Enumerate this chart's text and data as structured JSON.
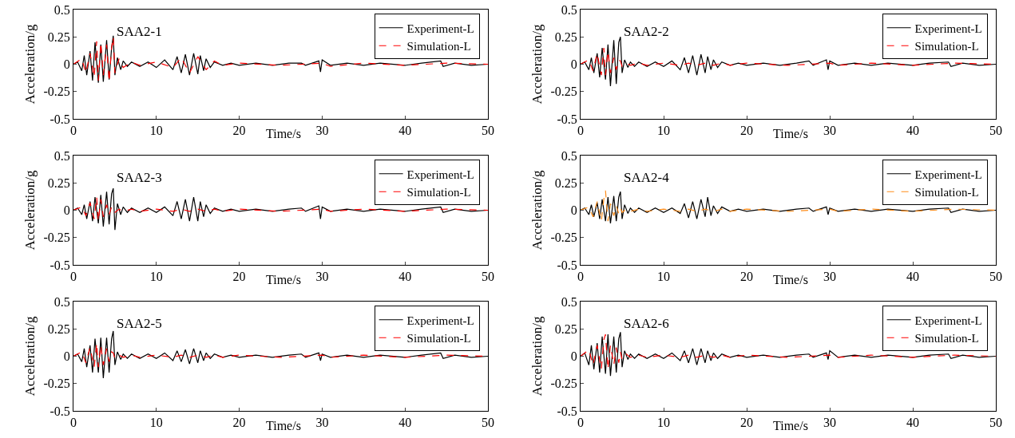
{
  "chart_data": [
    {
      "type": "line",
      "title": "SAA2-1",
      "xlabel": "Time/s",
      "ylabel": "Acceleration/g",
      "xlim": [
        0,
        50
      ],
      "xticks": [
        0,
        10,
        20,
        30,
        40,
        50
      ],
      "ylim": [
        -0.5,
        0.5
      ],
      "yticks": [
        -0.5,
        -0.25,
        0,
        0.25,
        0.5
      ],
      "grid": false,
      "legend": "top right",
      "marker": "none",
      "series": [
        {
          "name": "Experiment-L",
          "color": "#000000",
          "line_style": "solid",
          "x": [
            0,
            0.5,
            1,
            1.3,
            1.6,
            2,
            2.3,
            2.6,
            3,
            3.3,
            3.6,
            4,
            4.3,
            4.6,
            4.8,
            5,
            5.3,
            5.7,
            6,
            6.5,
            7,
            8,
            9,
            10,
            11,
            12,
            12.5,
            13,
            13.5,
            14,
            14.5,
            15,
            15.3,
            15.7,
            16,
            16.5,
            17,
            18,
            19,
            20,
            22,
            24,
            26,
            27.5,
            28,
            29.6,
            29.8,
            30,
            31,
            33,
            35,
            37,
            40,
            42,
            44.3,
            44.6,
            46,
            48,
            50
          ],
          "values": [
            0,
            0.02,
            -0.06,
            0.08,
            -0.1,
            0.12,
            -0.15,
            0.2,
            -0.17,
            0.18,
            -0.16,
            0.22,
            -0.14,
            0.15,
            0.26,
            -0.1,
            0.06,
            -0.05,
            0.03,
            -0.02,
            0.02,
            -0.02,
            0.02,
            -0.03,
            0.04,
            -0.05,
            0.07,
            -0.08,
            0.09,
            -0.1,
            0.1,
            -0.09,
            0.08,
            -0.06,
            0.05,
            -0.03,
            0.02,
            -0.01,
            0.01,
            -0.01,
            0.01,
            -0.01,
            0.01,
            0.01,
            -0.01,
            0.03,
            -0.07,
            0.04,
            -0.01,
            0.01,
            -0.01,
            0.01,
            -0.01,
            0.01,
            0.03,
            -0.02,
            0.01,
            -0.01,
            0
          ]
        },
        {
          "name": "Simulation-L",
          "color": "#ff0000",
          "line_style": "dashed",
          "x": [
            0,
            1,
            1.5,
            2,
            2.5,
            2.8,
            3,
            3.3,
            3.6,
            4,
            4.3,
            4.6,
            4.8,
            5,
            5.5,
            6,
            7,
            8,
            10,
            12,
            13,
            14,
            15,
            16,
            17,
            18,
            20,
            25,
            30,
            31,
            35,
            40,
            45,
            50
          ],
          "values": [
            0,
            0.05,
            -0.08,
            0.1,
            -0.12,
            0.21,
            -0.15,
            0.2,
            -0.1,
            0.18,
            -0.16,
            0.15,
            0.25,
            -0.08,
            0.05,
            -0.03,
            0.02,
            -0.01,
            0.02,
            -0.03,
            0.06,
            -0.08,
            0.07,
            -0.05,
            0.03,
            -0.01,
            0.01,
            -0.01,
            0.01,
            -0.02,
            0.01,
            -0.01,
            0.01,
            0
          ]
        }
      ]
    },
    {
      "type": "line",
      "title": "SAA2-2",
      "xlabel": "Time/s",
      "ylabel": "Acceleration/g",
      "xlim": [
        0,
        50
      ],
      "xticks": [
        0,
        10,
        20,
        30,
        40,
        50
      ],
      "ylim": [
        -0.5,
        0.5
      ],
      "yticks": [
        -0.5,
        -0.25,
        0,
        0.25,
        0.5
      ],
      "grid": false,
      "legend": "top right",
      "marker": "none",
      "series": [
        {
          "name": "Experiment-L",
          "color": "#000000",
          "line_style": "solid",
          "x": [
            0,
            0.5,
            1,
            1.3,
            1.6,
            2,
            2.3,
            2.6,
            3,
            3.3,
            3.6,
            4,
            4.3,
            4.6,
            4.8,
            5,
            5.3,
            5.7,
            6,
            6.5,
            7,
            8,
            9,
            10,
            11,
            12,
            12.5,
            13,
            13.5,
            14,
            14.5,
            15,
            15.3,
            15.7,
            16,
            16.5,
            17,
            18,
            19,
            20,
            22,
            24,
            26,
            27.5,
            28,
            29.6,
            29.8,
            30,
            31,
            33,
            35,
            37,
            40,
            42,
            44.3,
            44.6,
            46,
            48,
            50
          ],
          "values": [
            0,
            0.02,
            -0.05,
            0.06,
            -0.08,
            0.1,
            -0.12,
            0.15,
            -0.14,
            0.18,
            -0.2,
            0.22,
            -0.18,
            0.2,
            0.25,
            -0.08,
            0.04,
            -0.03,
            0.02,
            -0.02,
            0.02,
            -0.02,
            0.02,
            -0.02,
            0.03,
            -0.05,
            0.06,
            -0.08,
            0.08,
            -0.1,
            0.09,
            -0.08,
            0.07,
            -0.05,
            0.04,
            -0.03,
            0.02,
            -0.01,
            0.01,
            -0.01,
            0.01,
            -0.01,
            0.01,
            0.03,
            -0.01,
            0.04,
            -0.05,
            0.03,
            -0.01,
            0.01,
            -0.01,
            0.01,
            -0.01,
            0.01,
            0.02,
            -0.02,
            0.01,
            -0.01,
            0
          ]
        },
        {
          "name": "Simulation-L",
          "color": "#ff0000",
          "line_style": "dashed",
          "x": [
            0,
            1,
            1.5,
            2,
            2.5,
            2.8,
            3,
            3.3,
            3.6,
            4,
            4.3,
            4.6,
            4.8,
            5,
            5.5,
            6,
            7,
            8,
            10,
            12,
            13,
            14,
            15,
            16,
            17,
            18,
            20,
            25,
            30,
            31,
            35,
            40,
            45,
            50
          ],
          "values": [
            0,
            0.04,
            -0.06,
            0.1,
            -0.1,
            0.15,
            -0.1,
            0.12,
            -0.08,
            0.06,
            -0.05,
            0.04,
            0.03,
            -0.02,
            0.01,
            -0.01,
            0.01,
            -0.01,
            0.01,
            -0.01,
            0.01,
            -0.01,
            0.01,
            -0.01,
            0.01,
            -0.01,
            0.01,
            -0.01,
            0.01,
            -0.01,
            0.01,
            -0.01,
            0.01,
            0
          ]
        }
      ]
    },
    {
      "type": "line",
      "title": "SAA2-3",
      "xlabel": "Time/s",
      "ylabel": "Acceleration/g",
      "xlim": [
        0,
        50
      ],
      "xticks": [
        0,
        10,
        20,
        30,
        40,
        50
      ],
      "ylim": [
        -0.5,
        0.5
      ],
      "yticks": [
        -0.5,
        -0.25,
        0,
        0.25,
        0.5
      ],
      "grid": false,
      "legend": "top right",
      "marker": "none",
      "series": [
        {
          "name": "Experiment-L",
          "color": "#000000",
          "line_style": "solid",
          "x": [
            0,
            0.5,
            1,
            1.3,
            1.6,
            2,
            2.3,
            2.6,
            3,
            3.3,
            3.6,
            4,
            4.3,
            4.6,
            4.8,
            5,
            5.3,
            5.7,
            6,
            6.5,
            7,
            8,
            9,
            10,
            11,
            12,
            12.5,
            13,
            13.5,
            14,
            14.5,
            15,
            15.3,
            15.7,
            16,
            16.5,
            17,
            18,
            19,
            20,
            22,
            24,
            26,
            27.5,
            28,
            29.6,
            29.8,
            30,
            31,
            33,
            35,
            37,
            40,
            42,
            44.3,
            44.6,
            46,
            48,
            50
          ],
          "values": [
            0,
            0.02,
            -0.04,
            0.05,
            -0.08,
            0.08,
            -0.1,
            0.12,
            -0.12,
            0.14,
            -0.15,
            0.17,
            -0.13,
            0.15,
            0.2,
            -0.18,
            0.06,
            -0.04,
            0.03,
            -0.02,
            0.02,
            -0.02,
            0.02,
            -0.02,
            0.03,
            -0.05,
            0.08,
            -0.08,
            0.1,
            -0.1,
            0.12,
            -0.1,
            0.08,
            -0.06,
            0.05,
            -0.03,
            0.02,
            -0.01,
            0.01,
            -0.01,
            0.01,
            -0.01,
            0.01,
            0.02,
            -0.01,
            0.04,
            -0.08,
            0.03,
            -0.01,
            0.01,
            -0.01,
            0.01,
            -0.01,
            0.01,
            0.03,
            -0.02,
            0.01,
            -0.01,
            0
          ]
        },
        {
          "name": "Simulation-L",
          "color": "#ff0000",
          "line_style": "dashed",
          "x": [
            0,
            1,
            1.5,
            2,
            2.5,
            2.8,
            3,
            3.3,
            3.6,
            4,
            4.3,
            4.6,
            4.8,
            5,
            5.5,
            6,
            7,
            8,
            10,
            12,
            13,
            14,
            15,
            16,
            17,
            18,
            20,
            25,
            30,
            31,
            35,
            40,
            45,
            50
          ],
          "values": [
            0,
            0.03,
            -0.05,
            0.07,
            -0.08,
            0.12,
            -0.1,
            0.1,
            -0.06,
            0.05,
            -0.04,
            0.03,
            0.02,
            -0.02,
            0.01,
            -0.01,
            0.01,
            -0.01,
            0.01,
            -0.01,
            0.01,
            -0.01,
            0.01,
            -0.01,
            0.01,
            -0.01,
            0.01,
            -0.01,
            0.01,
            -0.01,
            0.01,
            -0.01,
            0.01,
            0
          ]
        }
      ]
    },
    {
      "type": "line",
      "title": "SAA2-4",
      "xlabel": "Time/s",
      "ylabel": "Acceleration/g",
      "xlim": [
        0,
        50
      ],
      "xticks": [
        0,
        10,
        20,
        30,
        40,
        50
      ],
      "ylim": [
        -0.5,
        0.5
      ],
      "yticks": [
        -0.5,
        -0.25,
        0,
        0.25,
        0.5
      ],
      "grid": false,
      "legend": "top right",
      "marker": "none",
      "series": [
        {
          "name": "Experiment-L",
          "color": "#000000",
          "line_style": "solid",
          "x": [
            0,
            0.5,
            1,
            1.3,
            1.6,
            2,
            2.3,
            2.6,
            3,
            3.3,
            3.6,
            4,
            4.3,
            4.6,
            4.8,
            5,
            5.3,
            5.7,
            6,
            6.5,
            7,
            8,
            9,
            10,
            11,
            12,
            12.5,
            13,
            13.5,
            14,
            14.5,
            15,
            15.3,
            15.7,
            16,
            16.5,
            17,
            18,
            19,
            20,
            22,
            24,
            26,
            27.5,
            28,
            29.6,
            29.8,
            30,
            31,
            33,
            35,
            37,
            40,
            42,
            44.3,
            44.6,
            46,
            48,
            50
          ],
          "values": [
            0,
            0.02,
            -0.04,
            0.05,
            -0.06,
            0.07,
            -0.08,
            0.1,
            -0.1,
            0.12,
            -0.12,
            0.13,
            -0.1,
            0.12,
            0.17,
            -0.08,
            0.05,
            -0.03,
            0.02,
            -0.02,
            0.02,
            -0.02,
            0.02,
            -0.02,
            0.02,
            -0.03,
            0.06,
            -0.07,
            0.08,
            -0.08,
            0.1,
            -0.06,
            0.12,
            -0.05,
            0.04,
            -0.03,
            0.03,
            -0.01,
            0.01,
            -0.01,
            0.01,
            -0.01,
            0.01,
            0.02,
            -0.01,
            0.03,
            -0.04,
            0.02,
            -0.01,
            0.01,
            -0.01,
            0.01,
            -0.01,
            0.01,
            0.02,
            -0.02,
            0.01,
            -0.01,
            0
          ]
        },
        {
          "name": "Simulation-L",
          "color": "#ff8c1a",
          "line_style": "dashed",
          "x": [
            0,
            1,
            1.5,
            2,
            2.5,
            2.8,
            3,
            3.3,
            3.6,
            4,
            4.3,
            4.6,
            4.8,
            5,
            5.5,
            6,
            7,
            8,
            10,
            12,
            13,
            14,
            15,
            16,
            17,
            18,
            20,
            25,
            30,
            31,
            35,
            40,
            45,
            50
          ],
          "values": [
            0,
            0.03,
            -0.06,
            0.08,
            -0.1,
            0.1,
            0.18,
            -0.1,
            0.06,
            -0.05,
            0.04,
            -0.03,
            0.02,
            -0.02,
            0.01,
            -0.01,
            0.01,
            -0.01,
            0.01,
            -0.01,
            0.01,
            -0.01,
            0.01,
            -0.01,
            0.01,
            -0.01,
            0.01,
            -0.01,
            0.01,
            -0.01,
            0.01,
            -0.01,
            0.01,
            0
          ]
        }
      ]
    },
    {
      "type": "line",
      "title": "SAA2-5",
      "xlabel": "Time/s",
      "ylabel": "Acceleration/g",
      "xlim": [
        0,
        50
      ],
      "xticks": [
        0,
        10,
        20,
        30,
        40,
        50
      ],
      "ylim": [
        -0.5,
        0.5
      ],
      "yticks": [
        -0.5,
        -0.25,
        0,
        0.25,
        0.5
      ],
      "grid": false,
      "legend": "top right",
      "marker": "none",
      "series": [
        {
          "name": "Experiment-L",
          "color": "#000000",
          "line_style": "solid",
          "x": [
            0,
            0.5,
            1,
            1.3,
            1.6,
            2,
            2.3,
            2.6,
            3,
            3.3,
            3.6,
            4,
            4.3,
            4.6,
            4.8,
            5,
            5.3,
            5.7,
            6,
            6.5,
            7,
            8,
            9,
            10,
            11,
            12,
            12.5,
            13,
            13.5,
            14,
            14.5,
            15,
            15.3,
            15.7,
            16,
            16.5,
            17,
            18,
            19,
            20,
            22,
            24,
            26,
            27.5,
            28,
            29.6,
            29.8,
            30,
            31,
            33,
            35,
            37,
            40,
            42,
            44.3,
            44.6,
            46,
            48,
            50
          ],
          "values": [
            0,
            0.02,
            -0.05,
            0.07,
            -0.1,
            0.1,
            -0.15,
            0.16,
            -0.15,
            0.17,
            -0.2,
            0.17,
            -0.15,
            0.16,
            0.23,
            -0.08,
            0.04,
            -0.03,
            0.02,
            -0.02,
            0.02,
            -0.02,
            0.02,
            -0.02,
            0.03,
            -0.04,
            0.05,
            -0.05,
            0.06,
            -0.07,
            0.07,
            -0.06,
            0.05,
            -0.04,
            0.03,
            -0.02,
            0.02,
            -0.01,
            0.01,
            -0.01,
            0.01,
            -0.01,
            0.01,
            0.02,
            -0.01,
            0.03,
            -0.04,
            0.02,
            -0.01,
            0.01,
            -0.01,
            0.01,
            -0.01,
            0.01,
            0.03,
            -0.02,
            0.01,
            -0.01,
            0
          ]
        },
        {
          "name": "Simulation-L",
          "color": "#ff0000",
          "line_style": "dashed",
          "x": [
            0,
            1,
            1.5,
            2,
            2.5,
            2.8,
            3,
            3.3,
            3.6,
            4,
            4.3,
            4.6,
            4.8,
            5,
            5.5,
            6,
            7,
            8,
            10,
            12,
            13,
            14,
            15,
            16,
            17,
            18,
            20,
            25,
            30,
            31,
            35,
            40,
            45,
            50
          ],
          "values": [
            0,
            0.04,
            -0.06,
            0.08,
            -0.1,
            0.12,
            -0.1,
            0.1,
            -0.08,
            0.07,
            -0.05,
            0.04,
            0.03,
            -0.02,
            0.01,
            -0.01,
            0.01,
            -0.01,
            0.01,
            -0.01,
            0.01,
            -0.01,
            0.01,
            -0.01,
            0.01,
            -0.01,
            0.01,
            -0.01,
            0.01,
            -0.01,
            0.01,
            -0.01,
            0.01,
            0
          ]
        }
      ]
    },
    {
      "type": "line",
      "title": "SAA2-6",
      "xlabel": "Time/s",
      "ylabel": "Acceleration/g",
      "xlim": [
        0,
        50
      ],
      "xticks": [
        0,
        10,
        20,
        30,
        40,
        50
      ],
      "ylim": [
        -0.5,
        0.5
      ],
      "yticks": [
        -0.5,
        -0.25,
        0,
        0.25,
        0.5
      ],
      "grid": false,
      "legend": "top right",
      "marker": "none",
      "series": [
        {
          "name": "Experiment-L",
          "color": "#000000",
          "line_style": "solid",
          "x": [
            0,
            0.5,
            1,
            1.3,
            1.6,
            2,
            2.3,
            2.6,
            3,
            3.3,
            3.6,
            4,
            4.3,
            4.6,
            4.8,
            5,
            5.3,
            5.7,
            6,
            6.5,
            7,
            8,
            9,
            10,
            11,
            12,
            12.5,
            13,
            13.5,
            14,
            14.5,
            15,
            15.3,
            15.7,
            16,
            16.5,
            17,
            18,
            19,
            20,
            22,
            24,
            26,
            27.5,
            28,
            29.6,
            29.8,
            30,
            31,
            33,
            35,
            37,
            40,
            42,
            44.3,
            44.6,
            46,
            48,
            50
          ],
          "values": [
            0,
            0.03,
            -0.08,
            0.1,
            -0.12,
            0.12,
            -0.15,
            0.18,
            -0.16,
            0.2,
            -0.18,
            0.18,
            -0.15,
            0.16,
            0.22,
            -0.1,
            0.05,
            -0.03,
            0.02,
            -0.02,
            0.02,
            -0.02,
            0.02,
            -0.02,
            0.03,
            -0.04,
            0.05,
            -0.06,
            0.07,
            -0.08,
            0.07,
            -0.06,
            0.05,
            -0.04,
            0.03,
            -0.02,
            0.02,
            -0.01,
            0.01,
            -0.01,
            0.01,
            -0.01,
            0.01,
            0.02,
            -0.01,
            0.03,
            -0.03,
            0.05,
            -0.01,
            0.01,
            -0.01,
            0.01,
            -0.01,
            0.01,
            0.02,
            -0.02,
            0.01,
            -0.01,
            0
          ]
        },
        {
          "name": "Simulation-L",
          "color": "#ff0000",
          "line_style": "dashed",
          "x": [
            0,
            1,
            1.5,
            2,
            2.5,
            2.8,
            3,
            3.3,
            3.6,
            4,
            4.3,
            4.6,
            4.8,
            5,
            5.5,
            6,
            7,
            8,
            10,
            12,
            13,
            14,
            15,
            16,
            17,
            18,
            20,
            25,
            30,
            31,
            35,
            40,
            45,
            50
          ],
          "values": [
            0,
            0.06,
            -0.08,
            0.1,
            -0.12,
            0.15,
            0.2,
            -0.12,
            0.1,
            -0.08,
            0.08,
            -0.06,
            0.04,
            -0.03,
            0.02,
            -0.01,
            0.01,
            -0.01,
            0.01,
            -0.01,
            0.01,
            -0.01,
            0.01,
            -0.01,
            0.01,
            -0.01,
            0.01,
            -0.01,
            0.01,
            -0.01,
            0.01,
            -0.01,
            0.01,
            0
          ]
        }
      ]
    }
  ]
}
